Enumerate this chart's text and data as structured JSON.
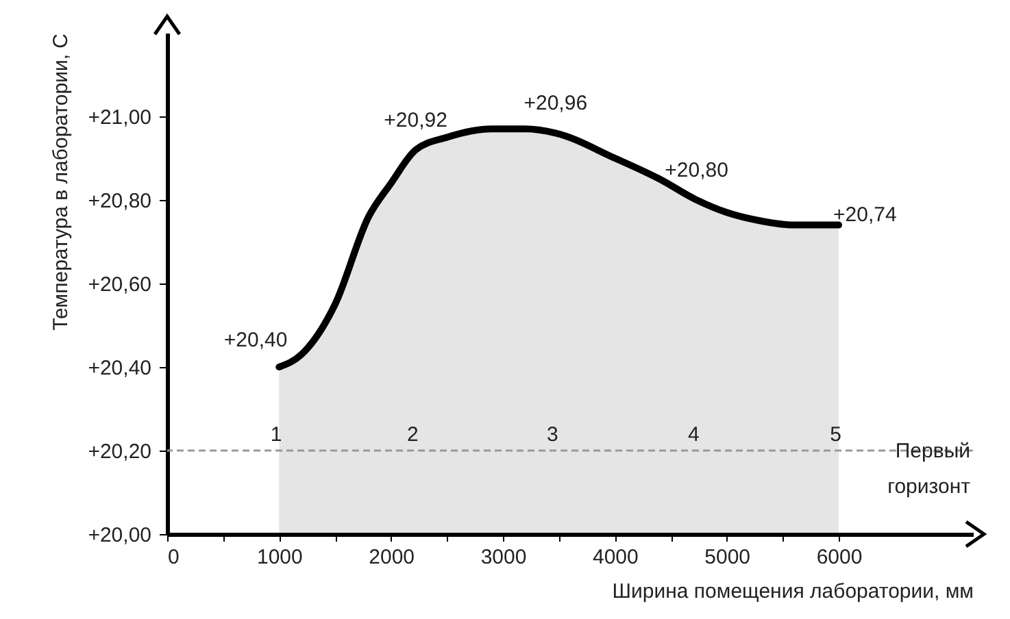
{
  "chart_data": {
    "type": "area",
    "xlabel": "Ширина помещения лаборатории, мм",
    "ylabel": "Температура в лаборатории, С",
    "x": [
      1000,
      1200,
      1500,
      1800,
      2000,
      2220,
      2500,
      2900,
      3200,
      3470,
      4000,
      4400,
      4730,
      5000,
      5300,
      5600,
      6000
    ],
    "series": [
      {
        "color": "#000000",
        "values": [
          20.4,
          20.43,
          20.55,
          20.76,
          20.84,
          20.92,
          20.95,
          20.97,
          20.97,
          20.96,
          20.9,
          20.85,
          20.8,
          20.77,
          20.75,
          20.74,
          20.74
        ],
        "value_labels": [
          "+20,40",
          null,
          null,
          null,
          null,
          "+20,92",
          null,
          null,
          null,
          "+20,96",
          null,
          null,
          "+20,80",
          null,
          null,
          null,
          "+20,74"
        ]
      }
    ],
    "xlim": [
      0,
      7200
    ],
    "ylim": [
      20,
      21.2
    ],
    "xticks": [
      0,
      {
        "value": 500,
        "label": null
      },
      1000,
      {
        "value": 1500,
        "label": null
      },
      2000,
      {
        "value": 2500,
        "label": null
      },
      3000,
      {
        "value": 3500,
        "label": null
      },
      4000,
      {
        "value": 4500,
        "label": null
      },
      5000,
      {
        "value": 5500,
        "label": null
      },
      6000
    ],
    "yticks": [
      {
        "value": 20,
        "label": "+20,00"
      },
      {
        "value": 20.2,
        "label": "+20,20"
      },
      {
        "value": 20.4,
        "label": "+20,40"
      },
      {
        "value": 20.6,
        "label": "+20,60"
      },
      {
        "value": 20.8,
        "label": "+20,80"
      },
      {
        "value": 21,
        "label": "+21,00"
      }
    ],
    "ref_lines": [
      {
        "axis": "y",
        "value": 20.2,
        "label": "Первый горизонт",
        "color": "#999999",
        "line_style": "dashed"
      }
    ],
    "annotations": [
      {
        "text": "1",
        "x": 1000,
        "y": 20.2
      },
      {
        "text": "2",
        "x": 2220,
        "y": 20.2
      },
      {
        "text": "3",
        "x": 3470,
        "y": 20.2
      },
      {
        "text": "4",
        "x": 4730,
        "y": 20.2
      },
      {
        "text": "5",
        "x": 6000,
        "y": 20.2
      }
    ],
    "grid": false
  }
}
